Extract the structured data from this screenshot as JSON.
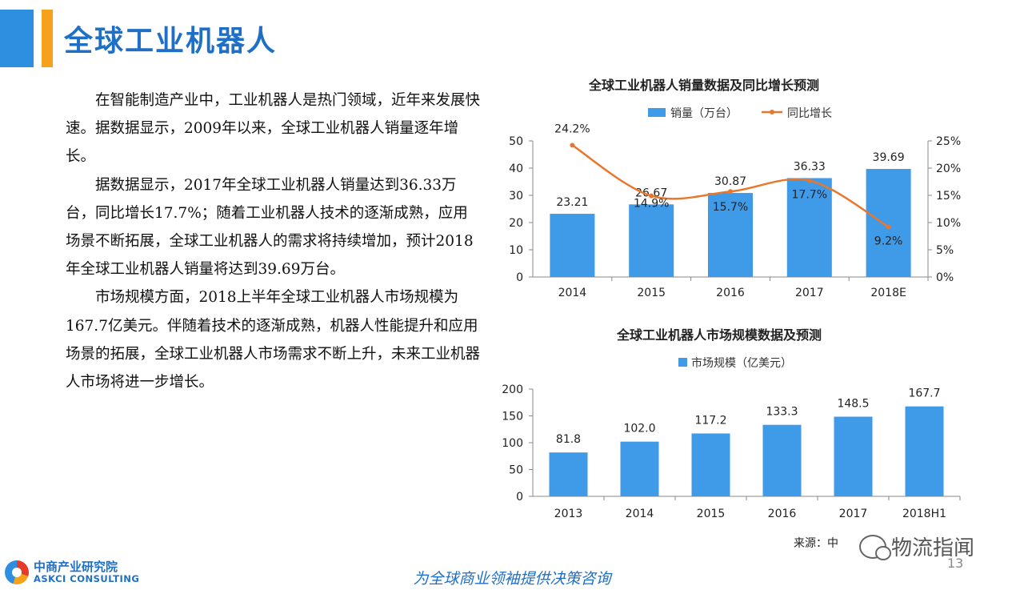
{
  "header": {
    "title": "全球工业机器人"
  },
  "body": {
    "paragraphs": [
      {
        "first": "在智能制造产业中，工业机器人是热门领域，",
        "rest": "近年来发展快速。据数据显示，2009年以来，全球工业机器人销量逐年增长。"
      },
      {
        "first": "据数据显示，2017年全球工业机器人销量达到",
        "rest": "36.33万台，同比增长17.7%；随着工业机器人技术的逐渐成熟，应用场景不断拓展，全球工业机器人的需求将持续增加，预计2018年全球工业机器人销量将达到39.69万台。"
      },
      {
        "first": "市场规模方面，2018上半年全球工业机器人市",
        "rest": "场规模为167.7亿美元。伴随着技术的逐渐成熟，机器人性能提升和应用场景的拓展，全球工业机器人市场需求不断上升，未来工业机器人市场将进一步增长。"
      }
    ]
  },
  "chart_data": [
    {
      "type": "bar",
      "title": "全球工业机器人销量数据及同比增长预测",
      "categories": [
        "2014",
        "2015",
        "2016",
        "2017",
        "2018E"
      ],
      "series": [
        {
          "name": "销量（万台）",
          "kind": "bar",
          "axis": "left",
          "values": [
            23.21,
            26.67,
            30.87,
            36.33,
            39.69
          ],
          "labels": [
            "23.21",
            "26.67",
            "30.87",
            "36.33",
            "39.69"
          ],
          "color": "#3f9ae8"
        },
        {
          "name": "同比增长",
          "kind": "line",
          "axis": "right",
          "values": [
            24.2,
            14.9,
            15.7,
            17.7,
            9.2
          ],
          "labels": [
            "24.2%",
            "14.9%",
            "15.7%",
            "17.7%",
            "9.2%"
          ],
          "color": "#e8772e"
        }
      ],
      "ylim": [
        0,
        50
      ],
      "y_ticks": [
        "0",
        "10",
        "20",
        "30",
        "40",
        "50"
      ],
      "y2lim": [
        0,
        25
      ],
      "y2_ticks": [
        "0%",
        "5%",
        "10%",
        "15%",
        "20%",
        "25%"
      ],
      "legend": "top",
      "grid": false
    },
    {
      "type": "bar",
      "title": "全球工业机器人市场规模数据及预测",
      "categories": [
        "2013",
        "2014",
        "2015",
        "2016",
        "2017",
        "2018H1"
      ],
      "series": [
        {
          "name": "市场规模（亿美元）",
          "values": [
            81.8,
            102.0,
            117.2,
            133.3,
            148.5,
            167.7
          ],
          "labels": [
            "81.8",
            "102.0",
            "117.2",
            "133.3",
            "148.5",
            "167.7"
          ],
          "color": "#3f9ae8"
        }
      ],
      "ylim": [
        0,
        200
      ],
      "y_ticks": [
        "0",
        "50",
        "100",
        "150",
        "200"
      ],
      "legend": "top",
      "grid": false
    }
  ],
  "footer": {
    "source": "来源：中",
    "watermark": "物流指闻",
    "page_number": "13",
    "logo_cn": "中商产业研究院",
    "logo_en": "ASKCI CONSULTING",
    "tagline": "为全球商业领袖提供决策咨询"
  }
}
